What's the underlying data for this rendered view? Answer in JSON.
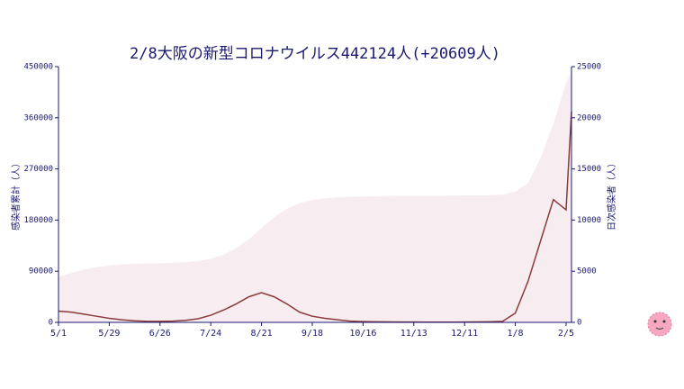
{
  "chart_data": {
    "type": "line",
    "title": "2/8大阪の新型コロナウイルス442124人(+20609人)",
    "y_label": "感染者累計（人）",
    "y2_label": "日次感染者（人）",
    "x": [
      0,
      7,
      14,
      21,
      28,
      35,
      42,
      49,
      56,
      63,
      70,
      77,
      84,
      91,
      98,
      105,
      112,
      119,
      126,
      133,
      140,
      147,
      154,
      161,
      168,
      175,
      182,
      189,
      196,
      203,
      210,
      217,
      224,
      231,
      238,
      245,
      252,
      259,
      266,
      273,
      280,
      283
    ],
    "xlim": [
      0,
      283
    ],
    "xticks": [
      {
        "value": 0,
        "label": "5/1"
      },
      {
        "value": 28,
        "label": "5/29"
      },
      {
        "value": 56,
        "label": "6/26"
      },
      {
        "value": 84,
        "label": "7/24"
      },
      {
        "value": 112,
        "label": "8/21"
      },
      {
        "value": 140,
        "label": "9/18"
      },
      {
        "value": 168,
        "label": "10/16"
      },
      {
        "value": 196,
        "label": "11/13"
      },
      {
        "value": 224,
        "label": "12/11"
      },
      {
        "value": 252,
        "label": "1/8"
      },
      {
        "value": 280,
        "label": "2/5"
      }
    ],
    "ylim": [
      0,
      450000
    ],
    "yticks": [
      0,
      90000,
      180000,
      270000,
      360000,
      450000
    ],
    "y2lim": [
      0,
      25000
    ],
    "y2ticks": [
      0,
      5000,
      10000,
      15000,
      20000,
      25000
    ],
    "series": [
      {
        "name": "感染者累計",
        "color": "#f7edf0",
        "fill": true,
        "values": [
          80000,
          87000,
          93000,
          97000,
          100000,
          102000,
          103000,
          103500,
          104000,
          105000,
          106000,
          108000,
          112000,
          119000,
          131000,
          146000,
          166000,
          185000,
          200000,
          210000,
          215000,
          218000,
          220000,
          221000,
          221500,
          222000,
          222300,
          222500,
          222700,
          222800,
          222900,
          223000,
          223200,
          223500,
          223900,
          225000,
          230000,
          245000,
          290000,
          350000,
          421000,
          442124
        ]
      },
      {
        "name": "日次感染者",
        "color": "#8b3a3a",
        "axis": "y2",
        "values": [
          1100,
          1000,
          800,
          600,
          400,
          250,
          150,
          100,
          100,
          120,
          200,
          350,
          700,
          1200,
          1800,
          2500,
          2900,
          2500,
          1800,
          1000,
          600,
          400,
          250,
          120,
          80,
          60,
          40,
          30,
          30,
          20,
          20,
          25,
          30,
          40,
          60,
          100,
          900,
          4000,
          8000,
          12000,
          11000,
          20609
        ]
      }
    ]
  }
}
